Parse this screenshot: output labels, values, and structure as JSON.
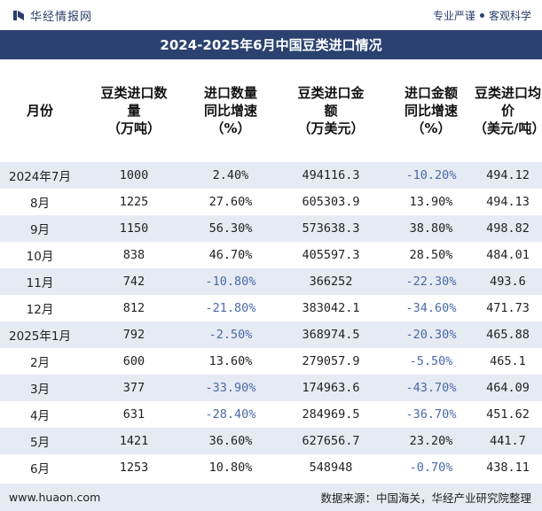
{
  "brand": {
    "name": "华经情报网",
    "slogan_left": "专业严谨",
    "slogan_right": "客观科学"
  },
  "title": "2024-2025年6月中国豆类进口情况",
  "headers": [
    "月份",
    "豆类进口数\n量\n（万吨）",
    "进口数量\n同比增速\n（%）",
    "豆类进口金\n额\n（万美元）",
    "进口金额\n同比增速\n（%）",
    "豆类进口均\n价\n（美元/吨）"
  ],
  "rows": [
    [
      "2024年7月",
      "1000",
      "2.40%",
      "494116.3",
      "-10.20%",
      "494.12"
    ],
    [
      "8月",
      "1225",
      "27.60%",
      "605303.9",
      "13.90%",
      "494.13"
    ],
    [
      "9月",
      "1150",
      "56.30%",
      "573638.3",
      "38.80%",
      "498.82"
    ],
    [
      "10月",
      "838",
      "46.70%",
      "405597.3",
      "28.50%",
      "484.01"
    ],
    [
      "11月",
      "742",
      "-10.80%",
      "366252",
      "-22.30%",
      "493.6"
    ],
    [
      "12月",
      "812",
      "-21.80%",
      "383042.1",
      "-34.60%",
      "471.73"
    ],
    [
      "2025年1月",
      "792",
      "-2.50%",
      "368974.5",
      "-20.30%",
      "465.88"
    ],
    [
      "2月",
      "600",
      "13.60%",
      "279057.9",
      "-5.50%",
      "465.1"
    ],
    [
      "3月",
      "377",
      "-33.90%",
      "174963.6",
      "-43.70%",
      "464.09"
    ],
    [
      "4月",
      "631",
      "-28.40%",
      "284969.5",
      "-36.70%",
      "451.62"
    ],
    [
      "5月",
      "1421",
      "36.60%",
      "627656.7",
      "23.20%",
      "441.7"
    ],
    [
      "6月",
      "1253",
      "10.80%",
      "548948",
      "-0.70%",
      "438.11"
    ]
  ],
  "footer": {
    "website": "www.huaon.com",
    "source": "数据来源：中国海关，华经产业研究院整理"
  },
  "colors": {
    "title_bg": "#2b4270",
    "stripe": "#e6eaf3",
    "negative": "#4a6aa8"
  }
}
